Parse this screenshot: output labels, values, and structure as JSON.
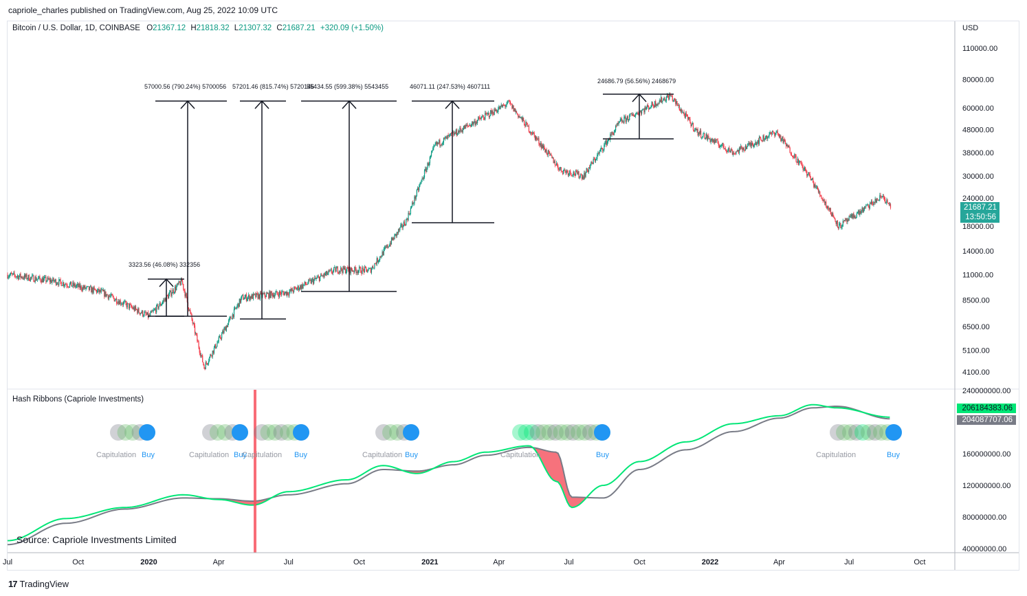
{
  "header": {
    "publisher": "capriole_charles published on TradingView.com, Aug 25, 2022 10:09 UTC"
  },
  "legend": {
    "symbol": "Bitcoin / U.S. Dollar, 1D, COINBASE",
    "open_label": "O",
    "open": "21367.12",
    "high_label": "H",
    "high": "21818.32",
    "low_label": "L",
    "low": "21307.32",
    "close_label": "C",
    "close": "21687.21",
    "change": "+320.09 (+1.50%)"
  },
  "price_axis": {
    "currency": "USD",
    "ticks": [
      "110000.00",
      "80000.00",
      "60000.00",
      "48000.00",
      "38000.00",
      "30000.00",
      "24000.00",
      "18000.00",
      "14000.00",
      "11000.00",
      "8500.00",
      "6500.00",
      "5100.00",
      "4100.00"
    ],
    "last_price": "21687.21",
    "countdown": "13:50:56"
  },
  "hash_axis": {
    "ticks": [
      "240000000.00",
      "160000000.00",
      "120000000.00",
      "80000000.00",
      "40000000.00"
    ],
    "badge_green": "206184383.06",
    "badge_grey": "204087707.06"
  },
  "time_axis": {
    "labels": [
      "Jul",
      "Oct",
      "2020",
      "Apr",
      "Jul",
      "Oct",
      "2021",
      "Apr",
      "Jul",
      "Oct",
      "2022",
      "Apr",
      "Jul",
      "Oct"
    ]
  },
  "hash_ribbons": {
    "title": "Hash Ribbons (Capriole Investments)",
    "capitulation_label": "Capitulation",
    "buy_label": "Buy"
  },
  "annotations": {
    "measures": [
      "3323.56 (46.08%) 332356",
      "57000.56 (790.24%) 5700056",
      "57201.46 (815.74%) 5720146",
      "55434.55 (599.38%) 5543455",
      "46071.11 (247.53%) 4607111",
      "24686.79 (56.56%) 2468679"
    ]
  },
  "source": "Source: Capriole Investments Limited",
  "brand": "TradingView",
  "colors": {
    "up": "#089981",
    "down": "#f23645",
    "hash_fast": "#00e676",
    "hash_slow": "#787b86",
    "ribbon_fill": "#f23645",
    "buy_dot": "#2196f3",
    "vline": "#f7525f"
  },
  "chart_data": [
    {
      "type": "line",
      "title": "Bitcoin / U.S. Dollar, 1D, COINBASE",
      "ylabel": "USD",
      "scale": "log",
      "ylim": [
        3800,
        115000
      ],
      "x": [
        "2019-07-01",
        "2019-09-01",
        "2019-11-01",
        "2020-01-01",
        "2020-02-13",
        "2020-03-13",
        "2020-05-01",
        "2020-07-01",
        "2020-09-01",
        "2020-10-15",
        "2020-12-01",
        "2021-01-08",
        "2021-02-15",
        "2021-04-14",
        "2021-06-20",
        "2021-07-20",
        "2021-09-06",
        "2021-11-10",
        "2021-12-15",
        "2022-02-01",
        "2022-03-28",
        "2022-05-10",
        "2022-06-18",
        "2022-08-14",
        "2022-08-24"
      ],
      "series": [
        {
          "values": [
            11000,
            10300,
            9200,
            7200,
            10300,
            4300,
            8700,
            9200,
            11600,
            11500,
            19000,
            41000,
            49000,
            63000,
            32000,
            30000,
            52000,
            68000,
            47000,
            38000,
            47000,
            30000,
            18000,
            24500,
            21687
          ]
        }
      ]
    },
    {
      "type": "line",
      "title": "Hash Ribbons (Capriole Investments)",
      "ylim": [
        40000000,
        240000000
      ],
      "x": [
        "2019-07-01",
        "2019-09-15",
        "2019-12-01",
        "2020-02-15",
        "2020-04-01",
        "2020-05-15",
        "2020-07-01",
        "2020-09-15",
        "2020-11-01",
        "2020-12-15",
        "2021-02-01",
        "2021-03-15",
        "2021-05-10",
        "2021-06-15",
        "2021-07-05",
        "2021-08-15",
        "2021-10-01",
        "2021-12-01",
        "2022-02-01",
        "2022-04-01",
        "2022-05-15",
        "2022-06-15",
        "2022-08-24"
      ],
      "series": [
        {
          "name": "",
          "values": [
            50000000,
            78000000,
            92000000,
            108000000,
            102000000,
            95000000,
            112000000,
            127000000,
            145000000,
            135000000,
            150000000,
            162000000,
            170000000,
            125000000,
            92000000,
            120000000,
            150000000,
            175000000,
            198000000,
            208000000,
            222000000,
            218000000,
            206184383
          ]
        },
        {
          "name": "",
          "values": [
            45000000,
            72000000,
            90000000,
            104000000,
            103000000,
            100000000,
            108000000,
            122000000,
            140000000,
            138000000,
            146000000,
            158000000,
            168000000,
            162000000,
            105000000,
            104000000,
            140000000,
            165000000,
            188000000,
            205000000,
            218000000,
            220000000,
            204087707
          ]
        }
      ]
    }
  ]
}
